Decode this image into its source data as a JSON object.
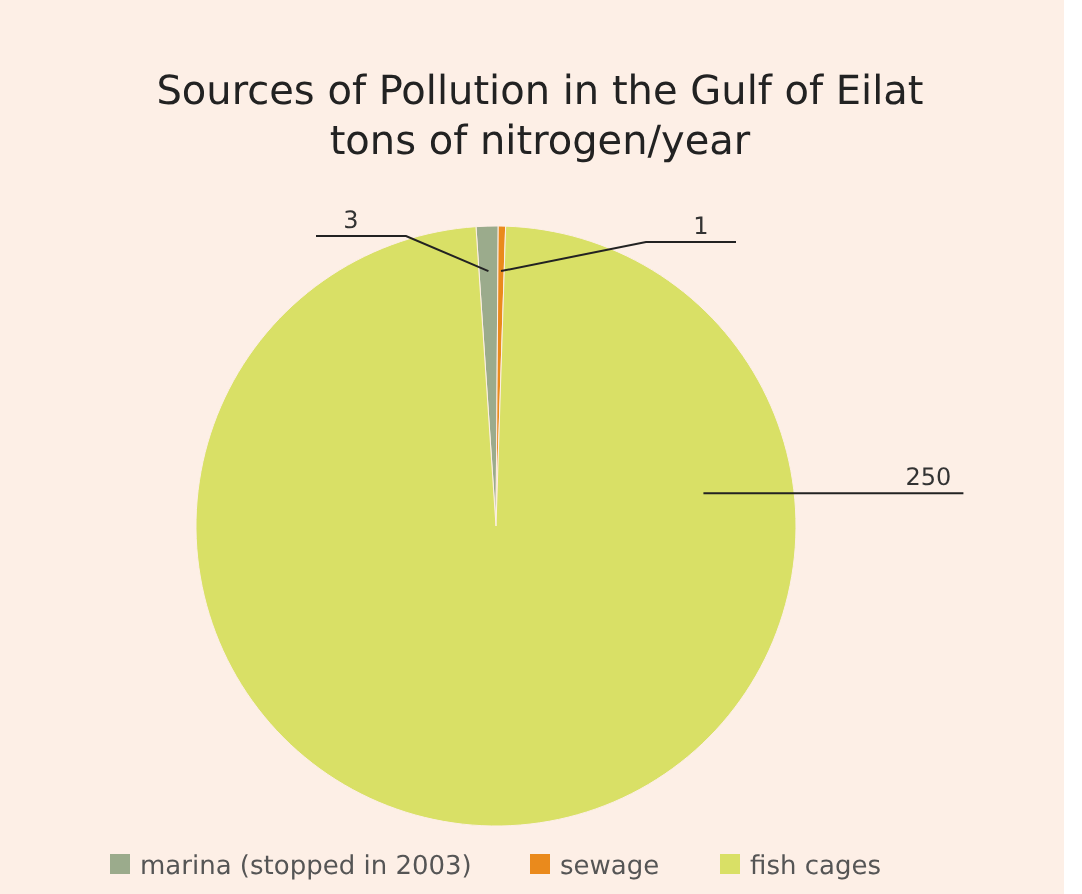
{
  "chart_data": {
    "type": "pie",
    "title": "Sources of Pollution in the Gulf of Eilat\ntons of nitrogen/year",
    "categories": [
      "marina (stopped in 2003)",
      "sewage",
      "fish cages"
    ],
    "values": [
      3,
      1,
      250
    ],
    "colors": [
      "#9bab8c",
      "#ea8a1c",
      "#d9e066"
    ],
    "data_labels": true,
    "legend": "bottom"
  }
}
